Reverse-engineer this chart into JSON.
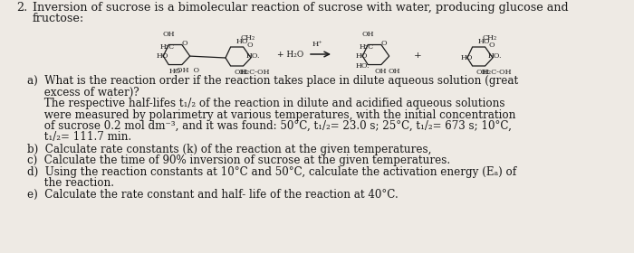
{
  "background_color": "#eeeae4",
  "title_number": "2.",
  "title_text": "Inversion of sucrose is a bimolecular reaction of sucrose with water, producing glucose and\nfructose:",
  "title_fontsize": 9.2,
  "text_color": "#1a1a1a",
  "fontsize_body": 8.6,
  "part_a_lines": [
    "a)  What is the reaction order if the reaction takes place in dilute aqueous solution (great",
    "     excess of water)?",
    "     The respective half-lifes t₁/₂ of the reaction in dilute and acidified aqueous solutions",
    "     were measured by polarimetry at various temperatures, with the initial concentration",
    "     of sucrose 0.2 mol dm⁻³, and it was found: 50°C, t₁/₂= 23.0 s; 25°C, t₁/₂= 673 s; 10°C,",
    "     t₁/₂= 111.7 min."
  ],
  "part_b_line": "b)  Calculate rate constants (k) of the reaction at the given temperatures,",
  "part_c_line": "c)  Calculate the time of 90% inversion of sucrose at the given temperatures.",
  "part_d_lines": [
    "d)  Using the reaction constants at 10°C and 50°C, calculate the activation energy (Eₐ) of",
    "     the reaction."
  ],
  "part_e_line": "e)  Calculate the rate constant and half- life of the reaction at 40°C."
}
